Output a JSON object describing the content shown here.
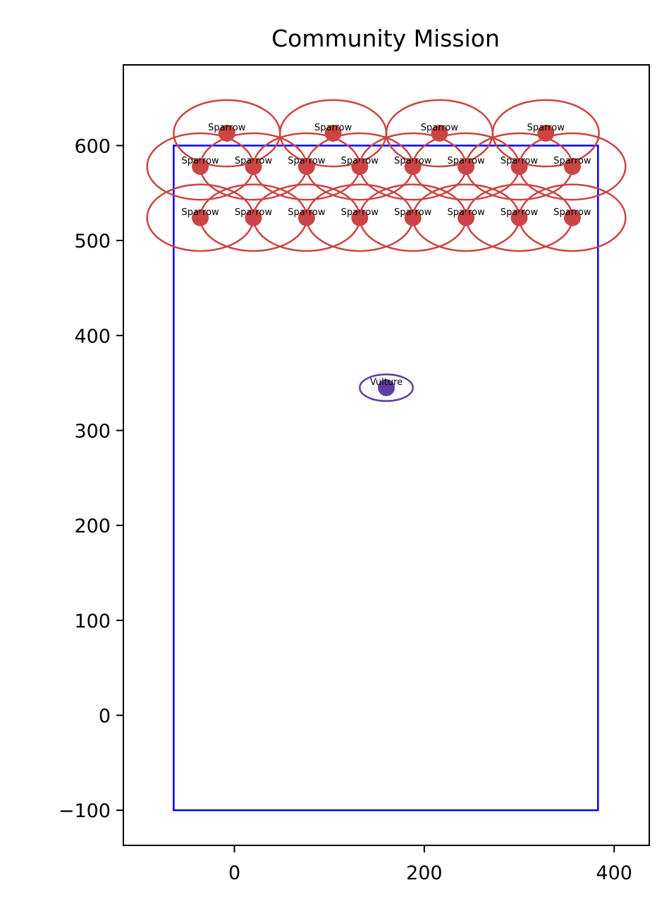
{
  "chart_data": {
    "type": "scatter",
    "title": "Community Mission",
    "xlabel": "",
    "ylabel": "",
    "xlim": [
      -117,
      437
    ],
    "ylim": [
      -137,
      685
    ],
    "xticks": [
      {
        "value": 0,
        "label": "0"
      },
      {
        "value": 200,
        "label": "200"
      },
      {
        "value": 400,
        "label": "400"
      }
    ],
    "yticks": [
      {
        "value": -100,
        "label": "−100"
      },
      {
        "value": 0,
        "label": "0"
      },
      {
        "value": 100,
        "label": "100"
      },
      {
        "value": 200,
        "label": "200"
      },
      {
        "value": 300,
        "label": "300"
      },
      {
        "value": 400,
        "label": "400"
      },
      {
        "value": 500,
        "label": "500"
      },
      {
        "value": 600,
        "label": "600"
      }
    ],
    "grid": false,
    "boundary": {
      "x0": -64,
      "y0": -100,
      "x1": 383,
      "y1": 600,
      "color": "#0000ff"
    },
    "colors": {
      "sparrow": "#cc4444",
      "vulture": "#5e3ea6",
      "boundary": "#0000ff"
    },
    "units": [
      {
        "label": "Sparrow",
        "x": -8,
        "y": 613,
        "rx": 56,
        "ry": 35
      },
      {
        "label": "Sparrow",
        "x": 104,
        "y": 613,
        "rx": 56,
        "ry": 35
      },
      {
        "label": "Sparrow",
        "x": 216,
        "y": 613,
        "rx": 56,
        "ry": 35
      },
      {
        "label": "Sparrow",
        "x": 328,
        "y": 613,
        "rx": 56,
        "ry": 35
      },
      {
        "label": "Sparrow",
        "x": -36,
        "y": 578,
        "rx": 56,
        "ry": 35
      },
      {
        "label": "Sparrow",
        "x": 20,
        "y": 578,
        "rx": 56,
        "ry": 35
      },
      {
        "label": "Sparrow",
        "x": 76,
        "y": 578,
        "rx": 56,
        "ry": 35
      },
      {
        "label": "Sparrow",
        "x": 132,
        "y": 578,
        "rx": 56,
        "ry": 35
      },
      {
        "label": "Sparrow",
        "x": 188,
        "y": 578,
        "rx": 56,
        "ry": 35
      },
      {
        "label": "Sparrow",
        "x": 244,
        "y": 578,
        "rx": 56,
        "ry": 35
      },
      {
        "label": "Sparrow",
        "x": 300,
        "y": 578,
        "rx": 56,
        "ry": 35
      },
      {
        "label": "Sparrow",
        "x": 356,
        "y": 578,
        "rx": 56,
        "ry": 35
      },
      {
        "label": "Sparrow",
        "x": -36,
        "y": 524,
        "rx": 56,
        "ry": 35
      },
      {
        "label": "Sparrow",
        "x": 20,
        "y": 524,
        "rx": 56,
        "ry": 35
      },
      {
        "label": "Sparrow",
        "x": 76,
        "y": 524,
        "rx": 56,
        "ry": 35
      },
      {
        "label": "Sparrow",
        "x": 132,
        "y": 524,
        "rx": 56,
        "ry": 35
      },
      {
        "label": "Sparrow",
        "x": 188,
        "y": 524,
        "rx": 56,
        "ry": 35
      },
      {
        "label": "Sparrow",
        "x": 244,
        "y": 524,
        "rx": 56,
        "ry": 35
      },
      {
        "label": "Sparrow",
        "x": 300,
        "y": 524,
        "rx": 56,
        "ry": 35
      },
      {
        "label": "Sparrow",
        "x": 356,
        "y": 524,
        "rx": 56,
        "ry": 35
      },
      {
        "label": "Vulture",
        "x": 160,
        "y": 345,
        "rx": 28,
        "ry": 14
      }
    ]
  }
}
